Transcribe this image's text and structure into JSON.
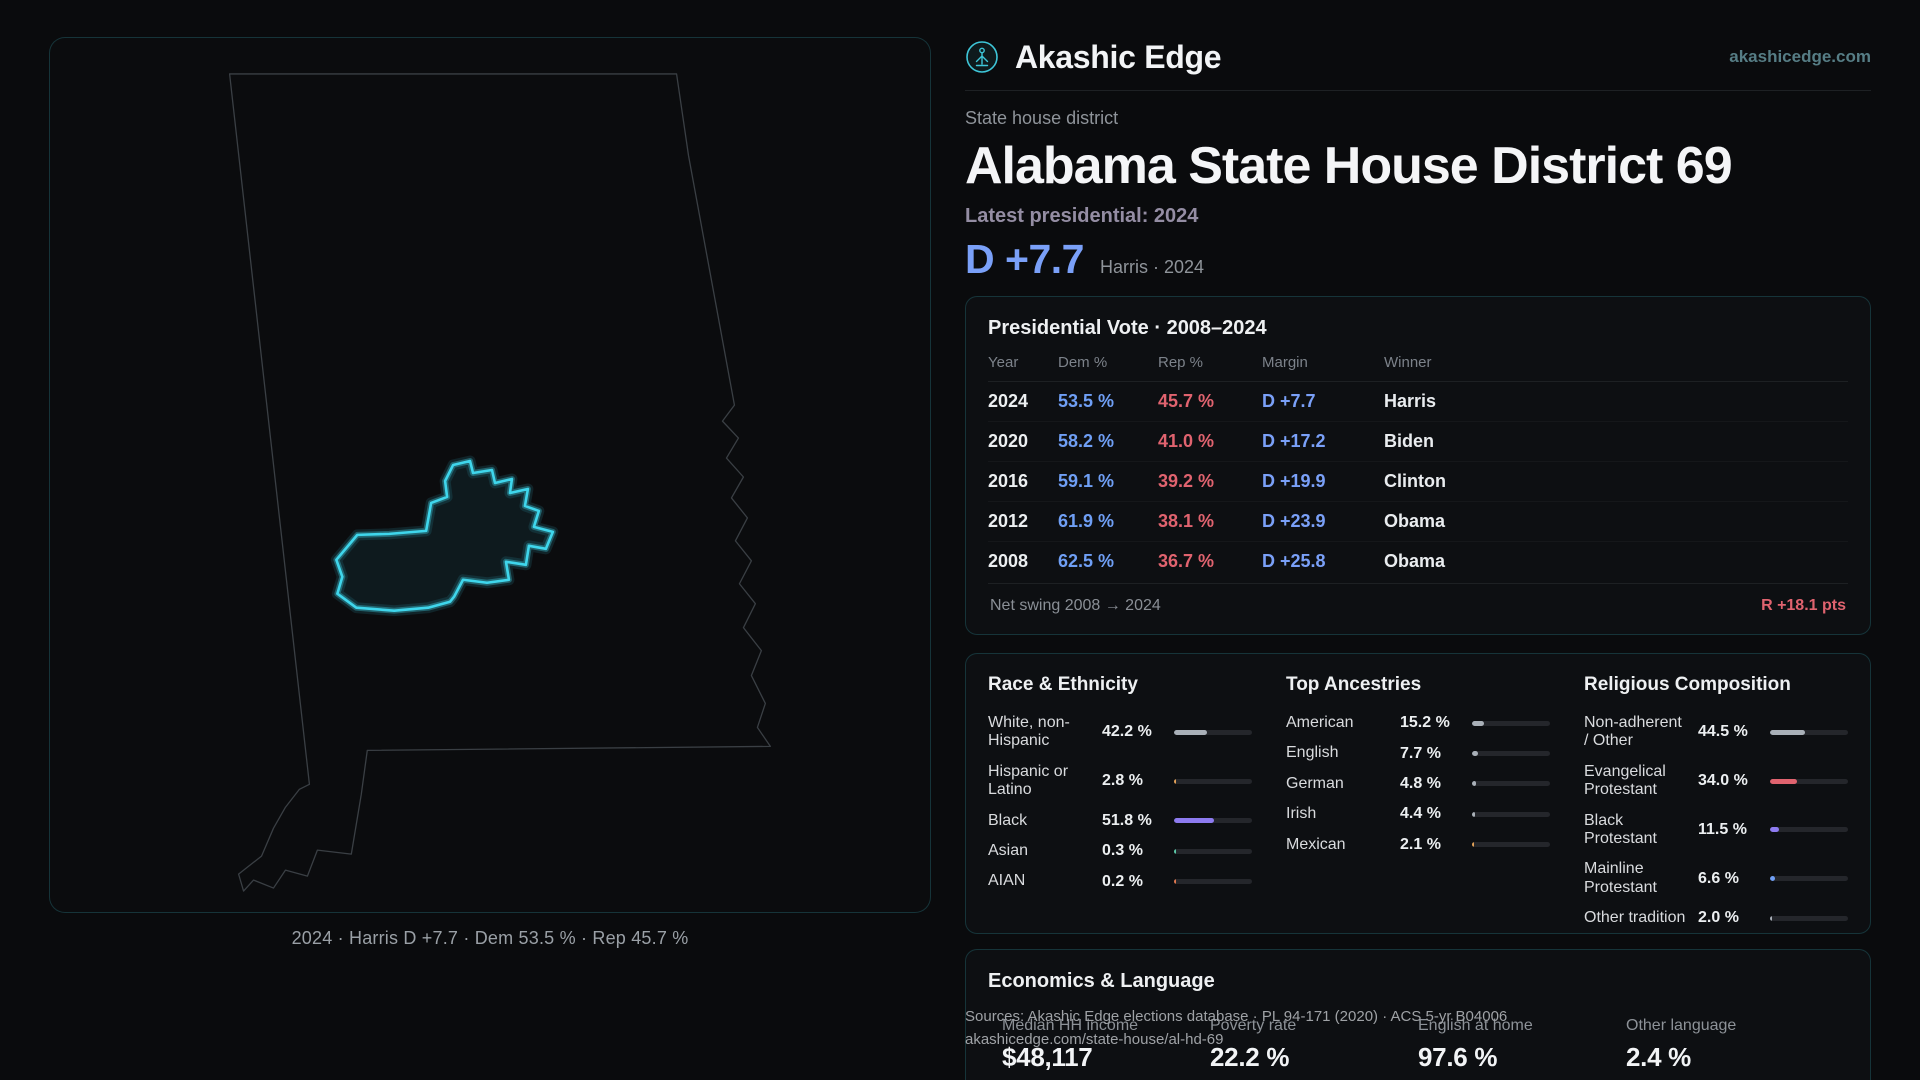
{
  "brand": {
    "name": "Akashic Edge",
    "domain": "akashicedge.com"
  },
  "header": {
    "kicker": "State house district",
    "title": "Alabama State House District 69",
    "latest_label": "Latest presidential: 2024",
    "margin": "D +7.7",
    "margin_note": "Harris · 2024"
  },
  "map": {
    "caption": "2024 · Harris D +7.7 · Dem 53.5 % · Rep 45.7 %"
  },
  "presidential": {
    "title": "Presidential Vote · 2008–2024",
    "columns": [
      "Year",
      "Dem %",
      "Rep %",
      "Margin",
      "Winner"
    ],
    "rows": [
      {
        "year": "2024",
        "dem": "53.5 %",
        "rep": "45.7 %",
        "margin": "D +7.7",
        "winner": "Harris"
      },
      {
        "year": "2020",
        "dem": "58.2 %",
        "rep": "41.0 %",
        "margin": "D +17.2",
        "winner": "Biden"
      },
      {
        "year": "2016",
        "dem": "59.1 %",
        "rep": "39.2 %",
        "margin": "D +19.9",
        "winner": "Clinton"
      },
      {
        "year": "2012",
        "dem": "61.9 %",
        "rep": "38.1 %",
        "margin": "D +23.9",
        "winner": "Obama"
      },
      {
        "year": "2008",
        "dem": "62.5 %",
        "rep": "36.7 %",
        "margin": "D +25.8",
        "winner": "Obama"
      }
    ],
    "footer_label": "Net swing 2008 → 2024",
    "footer_value": "R +18.1 pts"
  },
  "demographics": {
    "race": {
      "title": "Race & Ethnicity",
      "rows": [
        {
          "label": "White, non-Hispanic",
          "value": "42.2 %",
          "pct": 42.2,
          "color": "#a9b0b8"
        },
        {
          "label": "Hispanic or Latino",
          "value": "2.8 %",
          "pct": 2.8,
          "color": "#e2a158"
        },
        {
          "label": "Black",
          "value": "51.8 %",
          "pct": 51.8,
          "color": "#8d7bf0"
        },
        {
          "label": "Asian",
          "value": "0.3 %",
          "pct": 0.3,
          "color": "#5cc9a9"
        },
        {
          "label": "AIAN",
          "value": "0.2 %",
          "pct": 0.2,
          "color": "#e0784f"
        }
      ]
    },
    "ancestries": {
      "title": "Top Ancestries",
      "rows": [
        {
          "label": "American",
          "value": "15.2 %",
          "pct": 15.2,
          "color": "#a9b0b8"
        },
        {
          "label": "English",
          "value": "7.7 %",
          "pct": 7.7,
          "color": "#a9b0b8"
        },
        {
          "label": "German",
          "value": "4.8 %",
          "pct": 4.8,
          "color": "#a9b0b8"
        },
        {
          "label": "Irish",
          "value": "4.4 %",
          "pct": 4.4,
          "color": "#a9b0b8"
        },
        {
          "label": "Mexican",
          "value": "2.1 %",
          "pct": 2.1,
          "color": "#e2a158"
        }
      ]
    },
    "religion": {
      "title": "Religious Composition",
      "rows": [
        {
          "label": "Non-adherent / Other",
          "value": "44.5 %",
          "pct": 44.5,
          "color": "#a9b0b8"
        },
        {
          "label": "Evangelical Protestant",
          "value": "34.0 %",
          "pct": 34.0,
          "color": "#e0636f"
        },
        {
          "label": "Black Protestant",
          "value": "11.5 %",
          "pct": 11.5,
          "color": "#8d7bf0"
        },
        {
          "label": "Mainline Protestant",
          "value": "6.6 %",
          "pct": 6.6,
          "color": "#6f9ff5"
        },
        {
          "label": "Other tradition",
          "value": "2.0 %",
          "pct": 2.0,
          "color": "#a9b0b8"
        }
      ]
    }
  },
  "economics": {
    "title": "Economics & Language",
    "stats": [
      {
        "label": "Median HH income",
        "value": "$48,117"
      },
      {
        "label": "Poverty rate",
        "value": "22.2 %"
      },
      {
        "label": "English at home",
        "value": "97.6 %"
      },
      {
        "label": "Other language",
        "value": "2.4 %"
      }
    ]
  },
  "sources": {
    "line1": "Sources: Akashic Edge elections database · PL 94-171 (2020) · ACS 5-yr B04006",
    "line2": "akashicedge.com/state-house/al-hd-69"
  },
  "colors": {
    "dem": "#6f9ff5",
    "rep": "#e0636f",
    "accent": "#3ec6d8",
    "district_glow": "#3fd6ec"
  }
}
